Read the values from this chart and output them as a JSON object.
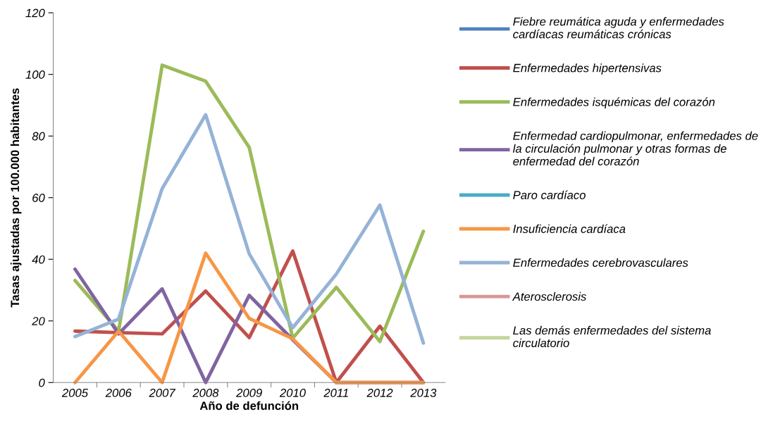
{
  "chart_data": {
    "type": "line",
    "xlabel": "Año de defunción",
    "ylabel": "Tasas ajustadas por 100.000 habitantes",
    "categories": [
      "2005",
      "2006",
      "2007",
      "2008",
      "2009",
      "2010",
      "2011",
      "2012",
      "2013"
    ],
    "ylim": [
      0,
      120
    ],
    "yticks": [
      0,
      20,
      40,
      60,
      80,
      100,
      120
    ],
    "grid": false,
    "legend": "right",
    "marker": "none",
    "line_style": "solid",
    "series": [
      {
        "name": "Fiebre reumática aguda y enfermedades cardíacas reumáticas crónicas",
        "color": "#4f81bd",
        "values": [
          null,
          null,
          null,
          null,
          null,
          null,
          null,
          null,
          null
        ]
      },
      {
        "name": "Enfermedades hipertensivas",
        "color": "#c0504d",
        "values": [
          16.7,
          16.2,
          15.8,
          29.7,
          14.6,
          42.7,
          0,
          18.3,
          0
        ]
      },
      {
        "name": "Enfermedades isquémicas del corazón",
        "color": "#9bbb59",
        "values": [
          33.1,
          16.7,
          103,
          97.8,
          76.3,
          14.4,
          30.9,
          13.3,
          49.1
        ]
      },
      {
        "name": "Enfermedad cardiopulmonar, enfermedades de la circulación pulmonar y otras formas de enfermedad del corazón",
        "color": "#8064a2",
        "values": [
          36.8,
          15.8,
          30.4,
          0,
          28.3,
          13.9,
          0,
          0,
          0
        ]
      },
      {
        "name": "Paro cardíaco",
        "color": "#4bacc6",
        "values": [
          null,
          null,
          null,
          null,
          null,
          null,
          null,
          null,
          null
        ]
      },
      {
        "name": "Insuficiencia cardíaca",
        "color": "#f79646",
        "values": [
          0,
          16.7,
          0,
          42,
          20.8,
          14.2,
          0,
          0,
          0
        ]
      },
      {
        "name": "Enfermedades cerebrovasculares",
        "color": "#95b3d7",
        "values": [
          14.9,
          20.6,
          62.9,
          86.9,
          41.8,
          17.8,
          35.2,
          57.6,
          12.8
        ]
      },
      {
        "name": "Aterosclerosis",
        "color": "#d99694",
        "values": [
          null,
          null,
          null,
          null,
          null,
          null,
          null,
          null,
          null
        ]
      },
      {
        "name": "Las demás enfermedades del sistema circulatorio",
        "color": "#c3d69b",
        "values": [
          null,
          null,
          null,
          null,
          null,
          null,
          null,
          null,
          null
        ]
      }
    ]
  }
}
